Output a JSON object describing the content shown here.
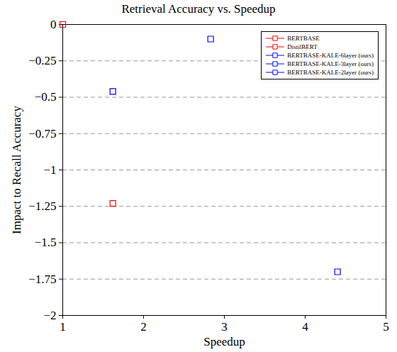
{
  "chart_data": {
    "type": "scatter",
    "title": "Retrieval Accuracy vs. Speedup",
    "x_label": "Speedup",
    "y_label": "Impact to Recall Accuracy",
    "xlim": [
      1,
      5
    ],
    "xticks": [
      1,
      2,
      3,
      4,
      5
    ],
    "ylim": [
      -2,
      0
    ],
    "yticks": [
      {
        "value": -2,
        "label": "−2"
      },
      {
        "value": -1.75,
        "label": "−1.75"
      },
      {
        "value": -1.5,
        "label": "−1.5"
      },
      {
        "value": -1.25,
        "label": "−1.25"
      },
      {
        "value": -1,
        "label": "−1"
      },
      {
        "value": -0.75,
        "label": "−0.75"
      },
      {
        "value": -0.5,
        "label": "−0.5"
      },
      {
        "value": -0.25,
        "label": "−0.25"
      },
      0
    ],
    "grid": "y",
    "legend": "upper right",
    "series": [
      {
        "name": "BERTBASE",
        "color": "#ff0000",
        "marker": "square",
        "x": [
          1
        ],
        "values": [
          0
        ]
      },
      {
        "name": "DistilBERT",
        "color": "#ff0000",
        "marker": "square",
        "x": [
          1.62
        ],
        "values": [
          -1.23
        ]
      },
      {
        "name": "BERTBASE-KALE-6layer (ours)",
        "color": "#0000ff",
        "marker": "square",
        "x": [
          1.62
        ],
        "values": [
          -0.46
        ]
      },
      {
        "name": "BERTBASE-KALE-3layer (ours)",
        "color": "#0000ff",
        "marker": "square",
        "x": [
          2.83
        ],
        "values": [
          -0.1
        ]
      },
      {
        "name": "BERTBASE-KALE-2layer (ours)",
        "color": "#0000ff",
        "marker": "square",
        "x": [
          4.4
        ],
        "values": [
          -1.7
        ]
      }
    ]
  }
}
